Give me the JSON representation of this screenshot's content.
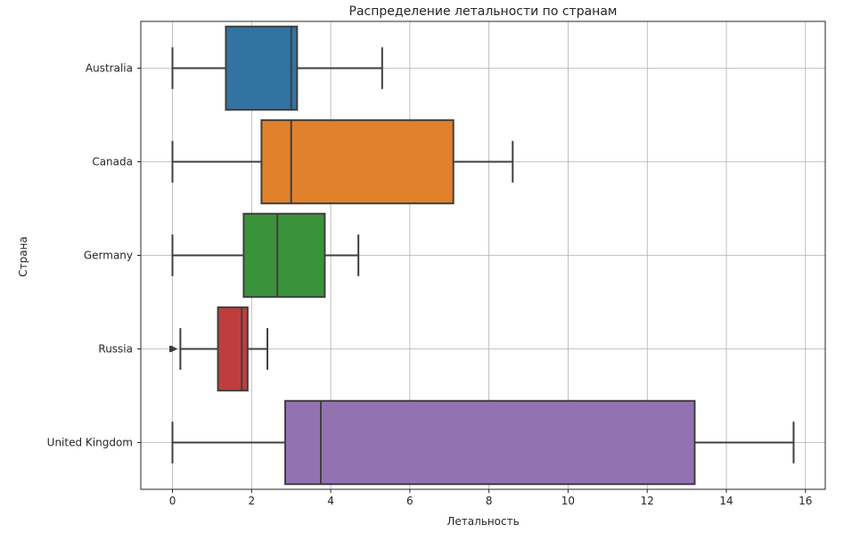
{
  "chart_data": {
    "type": "boxplot",
    "orientation": "horizontal",
    "title": "Распределение летальности по странам",
    "xlabel": "Летальность",
    "ylabel": "Страна",
    "xlim": [
      -0.8,
      16.5
    ],
    "xticks": [
      0,
      2,
      4,
      6,
      8,
      10,
      12,
      14,
      16
    ],
    "grid": true,
    "categories": [
      "Australia",
      "Canada",
      "Germany",
      "Russia",
      "United Kingdom"
    ],
    "series": [
      {
        "category": "Australia",
        "color": "#3274a1",
        "whisker_low": 0,
        "q1": 1.35,
        "median": 3.0,
        "q3": 3.15,
        "whisker_high": 5.3,
        "outliers": []
      },
      {
        "category": "Canada",
        "color": "#e1812c",
        "whisker_low": 0,
        "q1": 2.25,
        "median": 3.0,
        "q3": 7.1,
        "whisker_high": 8.6,
        "outliers": []
      },
      {
        "category": "Germany",
        "color": "#3a923a",
        "whisker_low": 0,
        "q1": 1.8,
        "median": 2.65,
        "q3": 3.85,
        "whisker_high": 4.7,
        "outliers": []
      },
      {
        "category": "Russia",
        "color": "#c03d3e",
        "whisker_low": 0.2,
        "q1": 1.15,
        "median": 1.75,
        "q3": 1.9,
        "whisker_high": 2.4,
        "outliers": [
          0,
          0.02,
          0.04
        ]
      },
      {
        "category": "United Kingdom",
        "color": "#9372b2",
        "whisker_low": 0,
        "q1": 2.85,
        "median": 3.75,
        "q3": 13.2,
        "whisker_high": 15.7,
        "outliers": []
      }
    ]
  }
}
